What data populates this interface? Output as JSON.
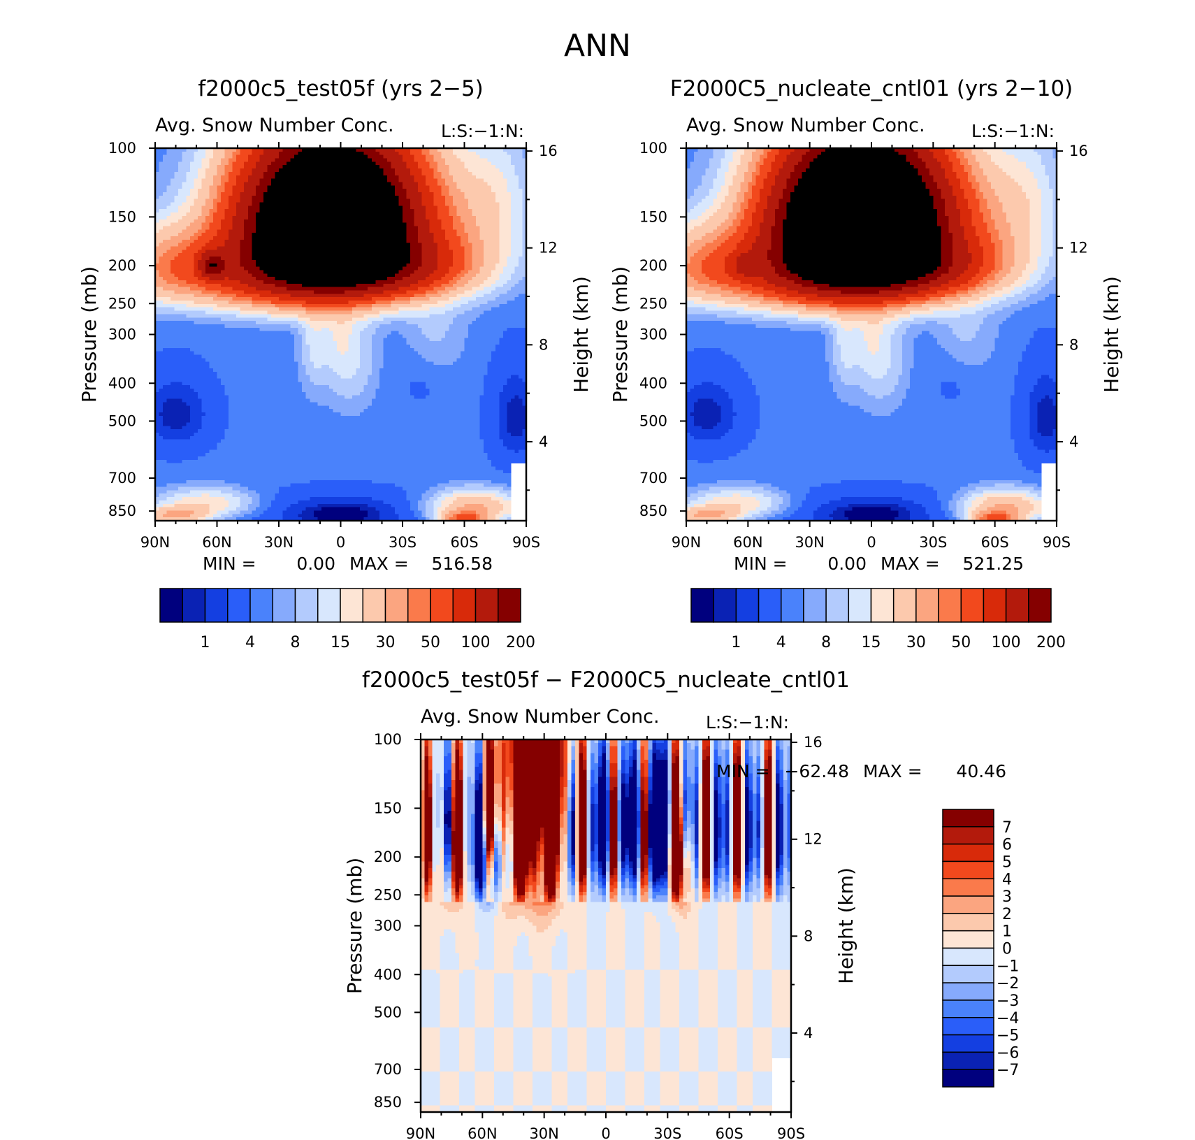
{
  "figure": {
    "title": "ANN"
  },
  "chart_data": [
    {
      "type": "heatmap",
      "title": "f2000c5_test05f (yrs 2−5)",
      "subtitle": "Avg. Snow Number Conc.",
      "corner_label": "L:S:−1:N:",
      "ylabel": "Pressure (mb)",
      "y2label": "Height (km)",
      "x_ticks": [
        "90N",
        "60N",
        "30N",
        "0",
        "30S",
        "60S",
        "90S"
      ],
      "y_ticks": [
        100,
        150,
        200,
        250,
        300,
        400,
        500,
        700,
        850
      ],
      "y2_ticks": [
        16,
        12,
        8,
        4
      ],
      "ylim": [
        100,
        900
      ],
      "stats": {
        "min_label": "MIN =",
        "min": "0.00",
        "max_label": "MAX =",
        "max": "516.58"
      },
      "colorbar": {
        "levels": [
          "1",
          "4",
          "8",
          "15",
          "30",
          "50",
          "100",
          "200"
        ],
        "colors": [
          "#00007e",
          "#0a22b4",
          "#143fe1",
          "#2a5ef9",
          "#4a82fb",
          "#86aafc",
          "#b3cbfd",
          "#d8e7fd",
          "#fde5d5",
          "#fcc9ad",
          "#fba580",
          "#fa7a4b",
          "#f2491d",
          "#d82a0a",
          "#b31a0c",
          "#850000"
        ]
      },
      "dataset": "pos1"
    },
    {
      "type": "heatmap",
      "title": "F2000C5_nucleate_cntl01 (yrs 2−10)",
      "subtitle": "Avg. Snow Number Conc.",
      "corner_label": "L:S:−1:N:",
      "ylabel": "Pressure (mb)",
      "y2label": "Height (km)",
      "x_ticks": [
        "90N",
        "60N",
        "30N",
        "0",
        "30S",
        "60S",
        "90S"
      ],
      "y_ticks": [
        100,
        150,
        200,
        250,
        300,
        400,
        500,
        700,
        850
      ],
      "y2_ticks": [
        16,
        12,
        8,
        4
      ],
      "ylim": [
        100,
        900
      ],
      "stats": {
        "min_label": "MIN =",
        "min": "0.00",
        "max_label": "MAX =",
        "max": "521.25"
      },
      "colorbar": {
        "levels": [
          "1",
          "4",
          "8",
          "15",
          "30",
          "50",
          "100",
          "200"
        ],
        "colors": [
          "#00007e",
          "#0a22b4",
          "#143fe1",
          "#2a5ef9",
          "#4a82fb",
          "#86aafc",
          "#b3cbfd",
          "#d8e7fd",
          "#fde5d5",
          "#fcc9ad",
          "#fba580",
          "#fa7a4b",
          "#f2491d",
          "#d82a0a",
          "#b31a0c",
          "#850000"
        ]
      },
      "dataset": "pos2"
    },
    {
      "type": "heatmap",
      "title": "f2000c5_test05f − F2000C5_nucleate_cntl01",
      "subtitle": "Avg. Snow Number Conc.",
      "corner_label": "L:S:−1:N:",
      "ylabel": "Pressure (mb)",
      "y2label": "Height (km)",
      "x_ticks": [
        "90N",
        "60N",
        "30N",
        "0",
        "30S",
        "60S",
        "90S"
      ],
      "y_ticks": [
        100,
        150,
        200,
        250,
        300,
        400,
        500,
        700,
        850
      ],
      "y2_ticks": [
        16,
        12,
        8,
        4
      ],
      "ylim": [
        100,
        900
      ],
      "stats": {
        "min_label": "MIN =",
        "min": "−62.48",
        "max_label": "MAX =",
        "max": "40.46"
      },
      "colorbar": {
        "levels": [
          "7",
          "6",
          "5",
          "4",
          "3",
          "2",
          "1",
          "0",
          "−1",
          "−2",
          "−3",
          "−4",
          "−5",
          "−6",
          "−7"
        ],
        "colors": [
          "#850000",
          "#b31a0c",
          "#d82a0a",
          "#f2491d",
          "#fa7a4b",
          "#fba580",
          "#fcc9ad",
          "#fde5d5",
          "#d8e7fd",
          "#b3cbfd",
          "#86aafc",
          "#4a82fb",
          "#2a5ef9",
          "#143fe1",
          "#0a22b4",
          "#00007e"
        ]
      },
      "dataset": "diff"
    }
  ]
}
